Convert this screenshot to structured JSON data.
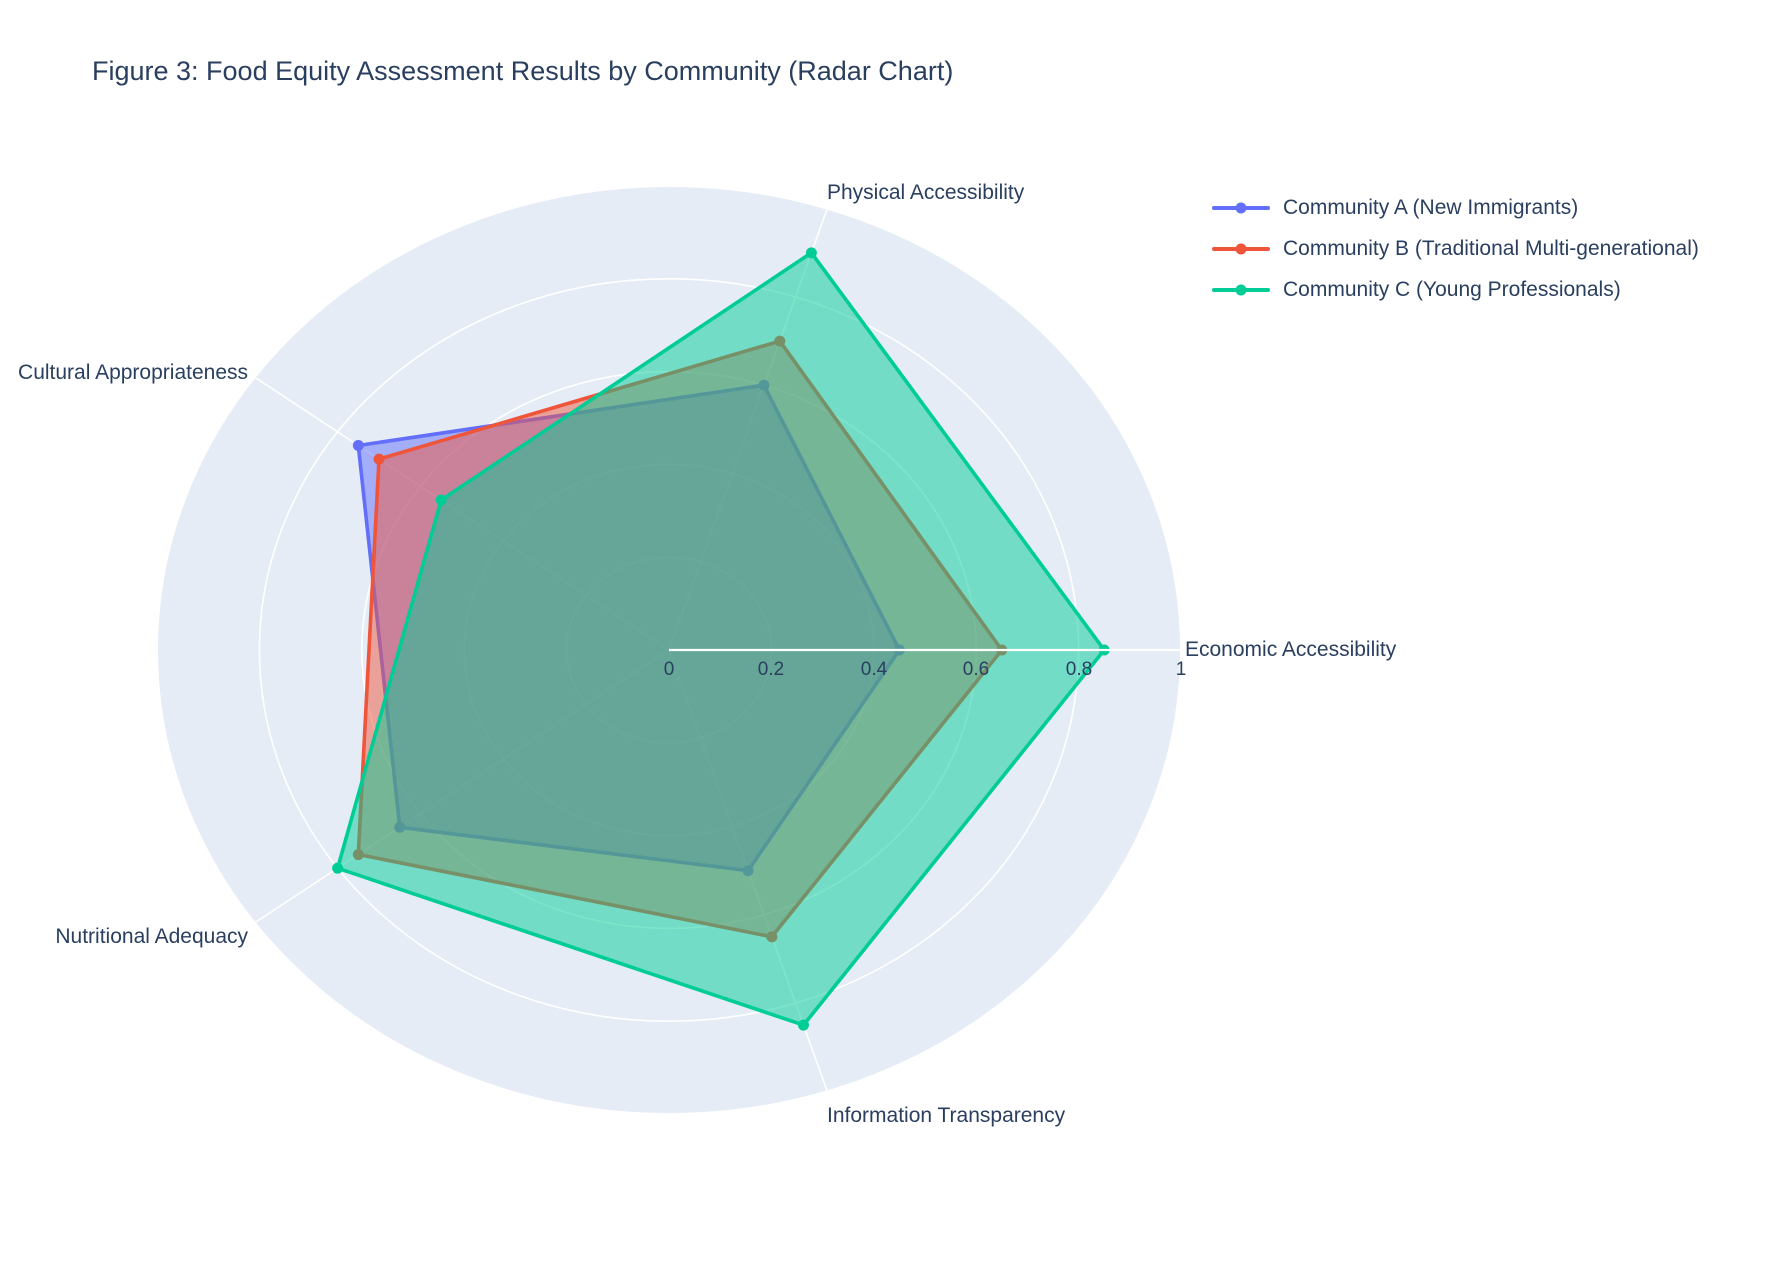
{
  "title": "Figure 3: Food Equity Assessment Results by Community (Radar Chart)",
  "chart_data": {
    "type": "radar",
    "categories": [
      "Economic Accessibility",
      "Physical Accessibility",
      "Cultural Appropriateness",
      "Nutritional Adequacy",
      "Information Transparency"
    ],
    "series": [
      {
        "name": "Community A (New Immigrants)",
        "color": "#636EFA",
        "values": [
          0.45,
          0.6,
          0.75,
          0.65,
          0.5
        ]
      },
      {
        "name": "Community B (Traditional Multi-generational)",
        "color": "#EF553B",
        "values": [
          0.65,
          0.7,
          0.7,
          0.75,
          0.65
        ]
      },
      {
        "name": "Community C (Young Professionals)",
        "color": "#00CC96",
        "values": [
          0.85,
          0.9,
          0.55,
          0.8,
          0.85
        ]
      }
    ],
    "radial_ticks": [
      "0",
      "0.2",
      "0.4",
      "0.6",
      "0.8",
      "1"
    ],
    "radial_range": [
      0,
      1
    ],
    "start_angle_deg": 0,
    "angle_step_deg": 72,
    "direction": "counterclockwise",
    "grid_shape": "circular",
    "fill_opacity": 0.5,
    "legend_position": "top-right",
    "colors": {
      "plot_background": "#E5ECF6",
      "grid_line": "#ffffff",
      "text": "#2a3f5f",
      "paper_background": "#ffffff"
    }
  }
}
